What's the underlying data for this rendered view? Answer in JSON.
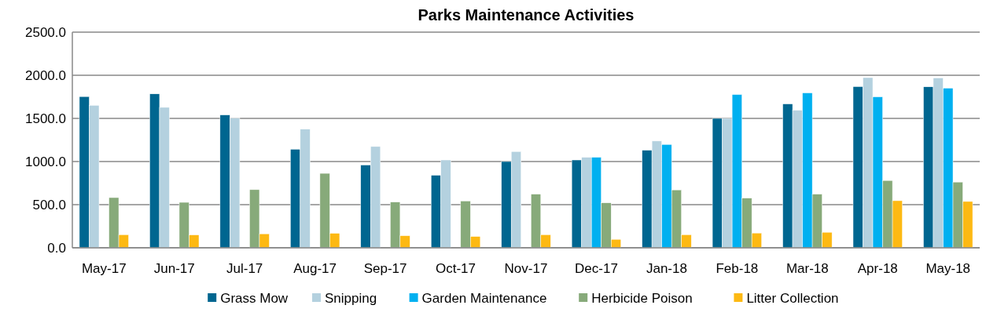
{
  "chart_data": {
    "type": "bar",
    "title": "Parks Maintenance Activities",
    "categories": [
      "May-17",
      "Jun-17",
      "Jul-17",
      "Aug-17",
      "Sep-17",
      "Oct-17",
      "Nov-17",
      "Dec-17",
      "Jan-18",
      "Feb-18",
      "Mar-18",
      "Apr-18",
      "May-18"
    ],
    "series": [
      {
        "name": "Grass Mow",
        "color": "#006690",
        "values": [
          1753,
          1784,
          1540,
          1143,
          960,
          841,
          1000,
          1018,
          1131,
          1500,
          1668,
          1869,
          1866
        ]
      },
      {
        "name": "Snipping",
        "color": "#b4d1df",
        "values": [
          1652,
          1628,
          1503,
          1375,
          1174,
          1018,
          1116,
          1049,
          1238,
          1500,
          1595,
          1973,
          1970
        ]
      },
      {
        "name": "Garden Maintenance",
        "color": "#00b0f0",
        "values": [
          null,
          null,
          null,
          null,
          null,
          null,
          null,
          1049,
          1198,
          1777,
          1796,
          1750,
          1851
        ]
      },
      {
        "name": "Herbicide Poison",
        "color": "#87aa7a",
        "values": [
          582,
          527,
          674,
          863,
          530,
          543,
          622,
          521,
          671,
          576,
          622,
          780,
          762
        ]
      },
      {
        "name": "Litter Collection",
        "color": "#fdb913",
        "values": [
          152,
          149,
          162,
          168,
          140,
          131,
          152,
          98,
          152,
          171,
          180,
          546,
          537
        ]
      }
    ],
    "ylim": [
      0,
      2500
    ],
    "yticks": [
      {
        "value": 0,
        "label": "0.0"
      },
      {
        "value": 500,
        "label": "500.0"
      },
      {
        "value": 1000,
        "label": "1000.0"
      },
      {
        "value": 1500,
        "label": "1500.0"
      },
      {
        "value": 2000,
        "label": "2000.0"
      },
      {
        "value": 2500,
        "label": "2500.0"
      }
    ],
    "grid": "y",
    "legend": "bottom"
  }
}
